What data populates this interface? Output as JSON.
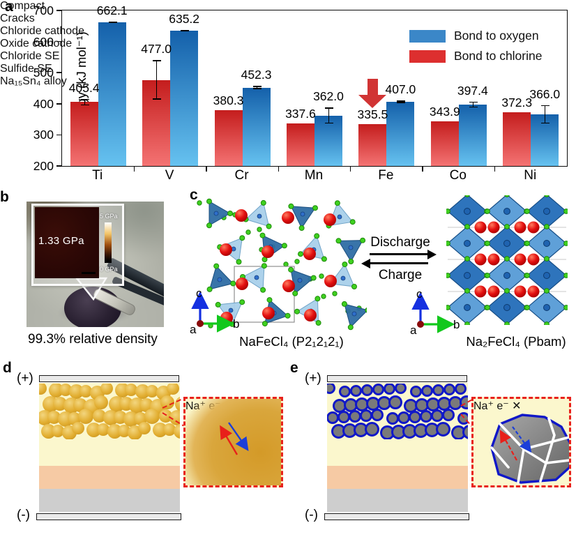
{
  "panel_a": {
    "label": "a"
  },
  "chart_data": {
    "type": "bar",
    "categories": [
      "Ti",
      "V",
      "Cr",
      "Mn",
      "Fe",
      "Co",
      "Ni"
    ],
    "series": [
      {
        "name": "Bond to chlorine",
        "values": [
          405.4,
          477.0,
          380.3,
          337.6,
          335.5,
          343.9,
          372.3
        ],
        "labels": [
          "405.4",
          "477.0",
          "380.3",
          "337.6",
          "335.5",
          "343.9",
          "372.3"
        ],
        "errors": [
          11,
          64,
          0,
          0,
          0,
          0,
          0
        ],
        "color_top": "#c41d1d",
        "color_bottom": "#f47373"
      },
      {
        "name": "Bond to oxygen",
        "values": [
          662.1,
          635.2,
          452.3,
          362.0,
          407.0,
          397.4,
          366.0
        ],
        "labels": [
          "662.1",
          "635.2",
          "452.3",
          "362.0",
          "407.0",
          "397.4",
          "366.0"
        ],
        "errors": [
          3,
          3,
          5,
          26,
          4,
          10,
          30
        ],
        "color_top": "#1460aa",
        "color_bottom": "#66c2f0"
      }
    ],
    "legend": [
      {
        "label": "Bond to oxygen",
        "color": "#3b87c8"
      },
      {
        "label": "Bond to chlorine",
        "color": "#dd2f2f"
      }
    ],
    "ylabel": "Bond energy (kJ mol⁻¹)",
    "ylim": [
      200,
      700
    ],
    "yticks": [
      "200",
      "300",
      "400",
      "500",
      "600",
      "700"
    ],
    "annotation": {
      "type": "down-arrow",
      "category": "Fe",
      "series": "Bond to chlorine",
      "color": "#d13434"
    }
  },
  "panel_b": {
    "label": "b",
    "nanoindentation_value": "1.33 GPa",
    "scale_max": "5 GPa",
    "scale_min": "0 GPa",
    "caption": "99.3% relative density"
  },
  "panel_c": {
    "label": "c",
    "left_caption": "NaFeCl₄ (P2₁2₁2₁)",
    "right_caption": "Na₂FeCl₄ (Pbam)",
    "forward": "Discharge",
    "reverse": "Charge",
    "axis": {
      "a": "a",
      "b": "b",
      "c": "c"
    }
  },
  "panel_d": {
    "label": "d",
    "positive": "(+)",
    "negative": "(-)",
    "na_ion": "Na⁺",
    "electron": "e⁻",
    "mark": "✓",
    "caption": "Compact"
  },
  "panel_e": {
    "label": "e",
    "positive": "(+)",
    "negative": "(-)",
    "na_ion": "Na⁺",
    "electron": "e⁻",
    "mark": "✕",
    "caption": "Cracks"
  },
  "legend": {
    "items": [
      {
        "label": "Chloride cathode",
        "swatch": "gold-sphere",
        "color": "#e2ae31"
      },
      {
        "label": "Oxide cathode",
        "swatch": "gray-sphere-blue-ring",
        "color": "#7a7a7a"
      },
      {
        "label": "Chloride SE",
        "swatch": "square",
        "color": "#fbf7cd"
      },
      {
        "label": "Sulfide SE",
        "swatch": "square",
        "color": "#f6caa4"
      },
      {
        "label": "Na₁₅Sn₄ alloy",
        "swatch": "square",
        "color": "#cecece"
      }
    ]
  }
}
